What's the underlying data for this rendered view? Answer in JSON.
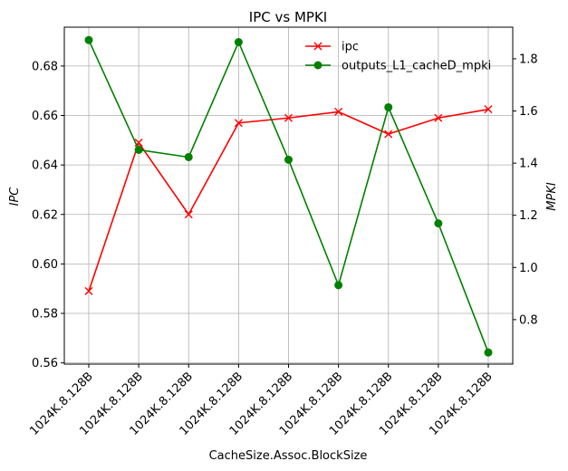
{
  "chart_data": {
    "type": "line",
    "title": "IPC vs MPKI",
    "xlabel": "CacheSize.Assoc.BlockSize",
    "ylabel_left": "IPC",
    "ylabel_right": "MPKI",
    "grid": true,
    "legend": "top-right",
    "categories": [
      "1024K.8.128B",
      "1024K.8.128B",
      "1024K.8.128B",
      "1024K.8.128B",
      "1024K.8.128B",
      "1024K.8.128B",
      "1024K.8.128B",
      "1024K.8.128B",
      "1024K.8.128B"
    ],
    "left_axis": {
      "ylim": [
        0.5595,
        0.6957
      ],
      "ticks": [
        0.56,
        0.58,
        0.6,
        0.62,
        0.64,
        0.66,
        0.68
      ],
      "tick_labels": [
        "0.56",
        "0.58",
        "0.60",
        "0.62",
        "0.64",
        "0.66",
        "0.68"
      ]
    },
    "right_axis": {
      "ylim": [
        0.6294,
        1.9213
      ],
      "ticks": [
        0.8,
        1.0,
        1.2,
        1.4,
        1.6,
        1.8
      ],
      "tick_labels": [
        "0.8",
        "1.0",
        "1.2",
        "1.4",
        "1.6",
        "1.8"
      ]
    },
    "series": [
      {
        "name": "ipc",
        "axis": "left",
        "color": "#ff0000",
        "marker": "x",
        "values": [
          0.589,
          0.649,
          0.62,
          0.657,
          0.659,
          0.6615,
          0.6525,
          0.659,
          0.6625
        ]
      },
      {
        "name": "outputs_L1_cacheD_mpki",
        "axis": "right",
        "color": "#008000",
        "marker": "circle",
        "values": [
          1.872,
          1.451,
          1.423,
          1.864,
          1.413,
          0.932,
          1.614,
          1.169,
          0.674
        ]
      }
    ]
  }
}
